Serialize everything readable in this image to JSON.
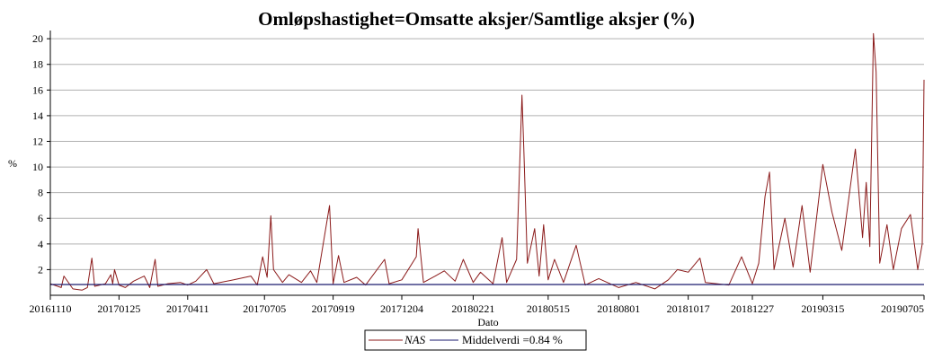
{
  "chart_data": {
    "type": "line",
    "title": "Omløpshastighet=Omsatte aksjer/Samtlige aksjer (%)",
    "xlabel": "Dato",
    "ylabel": "%",
    "ylim": [
      0,
      20.5
    ],
    "yticks": [
      2,
      4,
      6,
      8,
      10,
      12,
      14,
      16,
      18,
      20
    ],
    "grid": true,
    "legend_position": "bottom-center",
    "x_start": "20161110",
    "x_end": "20190705",
    "xticks": [
      "20161110",
      "20170125",
      "20170411",
      "20170705",
      "20170919",
      "20171204",
      "20180221",
      "20180515",
      "20180801",
      "20181017",
      "20181227",
      "20190315",
      "20190705"
    ],
    "series": [
      {
        "name": "NAS",
        "color": "#8b1a1a",
        "style": "solid",
        "points": [
          [
            "20161110",
            0.9
          ],
          [
            "20161122",
            0.6
          ],
          [
            "20161125",
            1.5
          ],
          [
            "20161205",
            0.5
          ],
          [
            "20161215",
            0.4
          ],
          [
            "20161221",
            0.6
          ],
          [
            "20161226",
            2.9
          ],
          [
            "20161229",
            0.7
          ],
          [
            "20170110",
            0.9
          ],
          [
            "20170116",
            1.6
          ],
          [
            "20170118",
            0.9
          ],
          [
            "20170120",
            2.0
          ],
          [
            "20170125",
            0.8
          ],
          [
            "20170201",
            0.6
          ],
          [
            "20170210",
            1.1
          ],
          [
            "20170222",
            1.5
          ],
          [
            "20170228",
            0.6
          ],
          [
            "20170306",
            2.8
          ],
          [
            "20170309",
            0.7
          ],
          [
            "20170320",
            0.9
          ],
          [
            "20170403",
            1.0
          ],
          [
            "20170411",
            0.8
          ],
          [
            "20170420",
            1.1
          ],
          [
            "20170502",
            2.0
          ],
          [
            "20170510",
            0.9
          ],
          [
            "20170601",
            1.2
          ],
          [
            "20170620",
            1.5
          ],
          [
            "20170627",
            0.8
          ],
          [
            "20170703",
            3.0
          ],
          [
            "20170708",
            1.4
          ],
          [
            "20170712",
            6.2
          ],
          [
            "20170715",
            2.0
          ],
          [
            "20170725",
            1.0
          ],
          [
            "20170801",
            1.6
          ],
          [
            "20170815",
            1.0
          ],
          [
            "20170825",
            1.9
          ],
          [
            "20170901",
            1.0
          ],
          [
            "20170915",
            7.0
          ],
          [
            "20170919",
            0.9
          ],
          [
            "20170925",
            3.1
          ],
          [
            "20171001",
            1.0
          ],
          [
            "20171015",
            1.4
          ],
          [
            "20171025",
            0.8
          ],
          [
            "20171115",
            2.8
          ],
          [
            "20171120",
            0.9
          ],
          [
            "20171204",
            1.2
          ],
          [
            "20171220",
            3.0
          ],
          [
            "20171222",
            5.2
          ],
          [
            "20171228",
            1.0
          ],
          [
            "20180110",
            1.5
          ],
          [
            "20180120",
            1.9
          ],
          [
            "20180201",
            1.1
          ],
          [
            "20180210",
            2.8
          ],
          [
            "20180221",
            1.0
          ],
          [
            "20180301",
            1.8
          ],
          [
            "20180315",
            0.9
          ],
          [
            "20180325",
            4.5
          ],
          [
            "20180330",
            1.0
          ],
          [
            "20180410",
            2.8
          ],
          [
            "20180416",
            15.6
          ],
          [
            "20180418",
            11.5
          ],
          [
            "20180422",
            2.5
          ],
          [
            "20180430",
            5.2
          ],
          [
            "20180505",
            1.5
          ],
          [
            "20180510",
            5.5
          ],
          [
            "20180515",
            1.2
          ],
          [
            "20180522",
            2.8
          ],
          [
            "20180601",
            1.0
          ],
          [
            "20180615",
            3.9
          ],
          [
            "20180625",
            0.8
          ],
          [
            "20180710",
            1.3
          ],
          [
            "20180801",
            0.6
          ],
          [
            "20180820",
            1.0
          ],
          [
            "20180910",
            0.5
          ],
          [
            "20180925",
            1.2
          ],
          [
            "20181005",
            2.0
          ],
          [
            "20181017",
            1.8
          ],
          [
            "20181030",
            2.9
          ],
          [
            "20181105",
            1.0
          ],
          [
            "20181201",
            0.8
          ],
          [
            "20181215",
            3.0
          ],
          [
            "20181227",
            0.9
          ],
          [
            "20190103",
            2.5
          ],
          [
            "20190110",
            7.7
          ],
          [
            "20190115",
            9.6
          ],
          [
            "20190120",
            2.0
          ],
          [
            "20190201",
            6.0
          ],
          [
            "20190210",
            2.2
          ],
          [
            "20190220",
            7.0
          ],
          [
            "20190301",
            1.8
          ],
          [
            "20190315",
            10.2
          ],
          [
            "20190325",
            6.5
          ],
          [
            "20190405",
            3.5
          ],
          [
            "20190420",
            11.4
          ],
          [
            "20190428",
            4.5
          ],
          [
            "20190502",
            8.8
          ],
          [
            "20190506",
            3.8
          ],
          [
            "20190510",
            20.4
          ],
          [
            "20190513",
            17.4
          ],
          [
            "20190517",
            2.5
          ],
          [
            "20190525",
            5.5
          ],
          [
            "20190601",
            2.0
          ],
          [
            "20190610",
            5.2
          ],
          [
            "20190620",
            6.3
          ],
          [
            "20190628",
            2.0
          ],
          [
            "20190703",
            4.0
          ],
          [
            "20190705",
            16.8
          ]
        ]
      },
      {
        "name": "Middelverdi =0.84 %",
        "color": "#1a1a6e",
        "style": "solid",
        "values": [
          0.84
        ]
      }
    ]
  }
}
